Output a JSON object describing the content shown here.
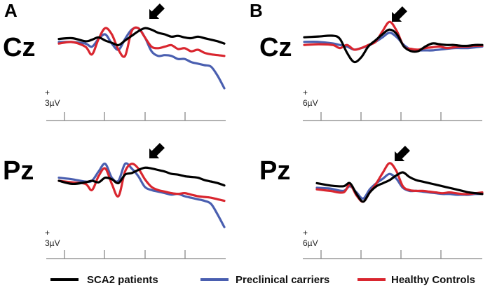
{
  "colors": {
    "SCA2 patients": "#000000",
    "Preclinical carriers": "#4a5fb0",
    "Healthy Controls": "#d9262f"
  },
  "legend": [
    {
      "label": "SCA2 patients",
      "color": "#000000"
    },
    {
      "label": "Preclinical carriers",
      "color": "#4a5fb0"
    },
    {
      "label": "Healthy Controls",
      "color": "#d9262f"
    }
  ],
  "chart_data": [
    {
      "type": "line",
      "panel": "A",
      "channel": "Cz",
      "scale_plus": "+",
      "scale_label": "3µV",
      "x": [
        0,
        0.08,
        0.16,
        0.2,
        0.24,
        0.28,
        0.32,
        0.36,
        0.4,
        0.44,
        0.48,
        0.52,
        0.56,
        0.6,
        0.64,
        0.68,
        0.72,
        0.76,
        0.8,
        0.84,
        0.88,
        0.92,
        0.96,
        1.0
      ],
      "series": [
        {
          "name": "SCA2 patients",
          "values": [
            0.2,
            0.25,
            0.05,
            0.15,
            0.3,
            0.1,
            -0.05,
            -0.2,
            0.1,
            0.4,
            0.7,
            0.9,
            0.8,
            0.6,
            0.5,
            0.35,
            0.4,
            0.3,
            0.25,
            0.35,
            0.25,
            0.15,
            0.05,
            -0.1
          ]
        },
        {
          "name": "Preclinical carriers",
          "values": [
            0.0,
            0.0,
            -0.1,
            -0.3,
            0.2,
            0.5,
            -0.1,
            -0.5,
            0.2,
            0.8,
            0.9,
            0.3,
            -0.6,
            -0.9,
            -0.85,
            -0.9,
            -1.1,
            -1.1,
            -1.3,
            -1.4,
            -1.5,
            -1.6,
            -2.2,
            -3.0
          ]
        },
        {
          "name": "Healthy Controls",
          "values": [
            -0.1,
            0.0,
            -0.3,
            -0.8,
            0.2,
            0.9,
            0.5,
            -0.5,
            -0.9,
            0.7,
            0.9,
            0.3,
            -0.3,
            -0.4,
            -0.3,
            -0.2,
            -0.45,
            -0.4,
            -0.6,
            -0.5,
            -0.7,
            -0.8,
            -0.85,
            -0.9
          ]
        }
      ]
    },
    {
      "type": "line",
      "panel": "B",
      "channel": "Cz",
      "scale_plus": "+",
      "scale_label": "6µV",
      "x": [
        0,
        0.08,
        0.16,
        0.2,
        0.24,
        0.28,
        0.32,
        0.36,
        0.4,
        0.44,
        0.48,
        0.52,
        0.56,
        0.6,
        0.64,
        0.68,
        0.72,
        0.76,
        0.8,
        0.84,
        0.88,
        0.92,
        0.96,
        1.0
      ],
      "series": [
        {
          "name": "SCA2 patients",
          "values": [
            0.4,
            0.45,
            0.5,
            0.3,
            -0.6,
            -1.2,
            -0.9,
            -0.2,
            0.2,
            0.6,
            0.9,
            0.6,
            -0.2,
            -0.5,
            -0.5,
            -0.2,
            0.0,
            -0.05,
            -0.1,
            -0.1,
            -0.15,
            -0.15,
            -0.1,
            -0.1
          ]
        },
        {
          "name": "Preclinical carriers",
          "values": [
            0.1,
            0.1,
            0.0,
            -0.1,
            -0.2,
            -0.4,
            -0.3,
            -0.15,
            0.1,
            0.4,
            0.7,
            0.4,
            -0.1,
            -0.4,
            -0.45,
            -0.45,
            -0.45,
            -0.4,
            -0.35,
            -0.3,
            -0.3,
            -0.3,
            -0.25,
            -0.2
          ]
        },
        {
          "name": "Healthy Controls",
          "values": [
            -0.1,
            -0.05,
            -0.1,
            -0.3,
            -0.1,
            -0.4,
            -0.3,
            -0.1,
            0.1,
            0.8,
            1.4,
            0.8,
            -0.2,
            -0.35,
            -0.4,
            -0.3,
            -0.25,
            -0.2,
            -0.3,
            -0.25,
            -0.2,
            -0.2,
            -0.15,
            -0.15
          ]
        }
      ]
    },
    {
      "type": "line",
      "panel": "",
      "channel": "Pz",
      "scale_plus": "+",
      "scale_label": "3µV",
      "x": [
        0,
        0.08,
        0.16,
        0.2,
        0.24,
        0.28,
        0.32,
        0.36,
        0.4,
        0.44,
        0.48,
        0.52,
        0.56,
        0.6,
        0.64,
        0.68,
        0.72,
        0.76,
        0.8,
        0.84,
        0.88,
        0.92,
        0.96,
        1.0
      ],
      "series": [
        {
          "name": "SCA2 patients",
          "values": [
            0.0,
            -0.2,
            -0.1,
            0.0,
            -0.1,
            0.2,
            0.1,
            -0.15,
            0.4,
            0.5,
            0.7,
            0.85,
            0.8,
            0.7,
            0.6,
            0.45,
            0.4,
            0.3,
            0.25,
            0.2,
            0.05,
            -0.05,
            -0.15,
            -0.3
          ]
        },
        {
          "name": "Preclinical carriers",
          "values": [
            0.2,
            0.1,
            -0.05,
            0.0,
            0.6,
            1.1,
            0.2,
            0.0,
            1.1,
            0.8,
            0.3,
            -0.4,
            -0.6,
            -0.7,
            -0.8,
            -0.9,
            -0.85,
            -1.0,
            -1.1,
            -1.2,
            -1.3,
            -1.5,
            -2.2,
            -3.0
          ]
        },
        {
          "name": "Healthy Controls",
          "values": [
            0.0,
            -0.1,
            -0.2,
            -0.6,
            0.3,
            0.8,
            -0.2,
            -1.0,
            0.6,
            1.1,
            0.8,
            0.1,
            -0.4,
            -0.6,
            -0.7,
            -0.8,
            -0.85,
            -0.8,
            -0.9,
            -1.0,
            -1.05,
            -1.1,
            -1.2,
            -1.3
          ]
        }
      ]
    },
    {
      "type": "line",
      "panel": "",
      "channel": "Pz",
      "scale_plus": "+",
      "scale_label": "6µV",
      "x": [
        0,
        0.08,
        0.16,
        0.2,
        0.24,
        0.28,
        0.32,
        0.36,
        0.4,
        0.44,
        0.48,
        0.52,
        0.56,
        0.6,
        0.64,
        0.68,
        0.72,
        0.76,
        0.8,
        0.84,
        0.88,
        0.92,
        0.96,
        1.0
      ],
      "series": [
        {
          "name": "SCA2 patients",
          "values": [
            0.3,
            0.15,
            0.1,
            0.3,
            -0.4,
            -0.9,
            -0.3,
            0.1,
            0.3,
            0.5,
            0.8,
            1.0,
            0.7,
            0.5,
            0.4,
            0.3,
            0.2,
            0.1,
            0.0,
            -0.1,
            -0.2,
            -0.3,
            -0.35,
            -0.4
          ]
        },
        {
          "name": "Preclinical carriers",
          "values": [
            0.0,
            -0.05,
            -0.2,
            0.1,
            -0.3,
            -0.7,
            -0.1,
            0.3,
            0.6,
            0.9,
            0.6,
            0.0,
            -0.2,
            -0.2,
            -0.25,
            -0.3,
            -0.35,
            -0.4,
            -0.4,
            -0.45,
            -0.45,
            -0.45,
            -0.4,
            -0.4
          ]
        },
        {
          "name": "Healthy Controls",
          "values": [
            -0.1,
            -0.2,
            -0.3,
            0.2,
            -0.5,
            -0.9,
            -0.3,
            0.3,
            1.0,
            1.6,
            1.1,
            0.1,
            -0.15,
            -0.2,
            -0.2,
            -0.25,
            -0.3,
            -0.35,
            -0.3,
            -0.35,
            -0.4,
            -0.4,
            -0.35,
            -0.3
          ]
        }
      ]
    }
  ]
}
